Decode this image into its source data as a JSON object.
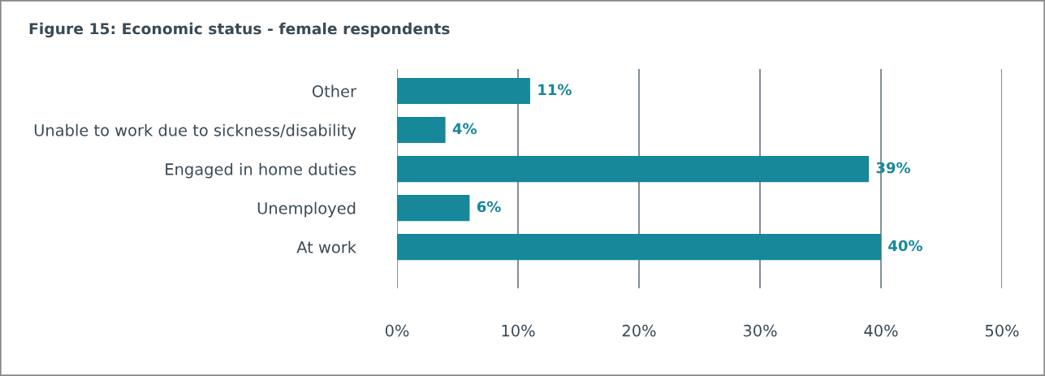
{
  "chart_data": {
    "type": "bar",
    "orientation": "horizontal",
    "title": "Figure 15: Economic status - female respondents",
    "categories": [
      "Other",
      "Unable to work due to sickness/disability",
      "Engaged in home duties",
      "Unemployed",
      "At work"
    ],
    "values": [
      11,
      4,
      39,
      6,
      40
    ],
    "value_labels": [
      "11%",
      "4%",
      "39%",
      "6%",
      "40%"
    ],
    "color": "#17879a",
    "xlim": [
      0,
      50
    ],
    "xticks": [
      {
        "value": 0,
        "label": "0%"
      },
      {
        "value": 10,
        "label": "10%"
      },
      {
        "value": 20,
        "label": "20%"
      },
      {
        "value": 30,
        "label": "30%"
      },
      {
        "value": 40,
        "label": "40%"
      },
      {
        "value": 50,
        "label": "50%"
      }
    ],
    "grid": "x"
  }
}
